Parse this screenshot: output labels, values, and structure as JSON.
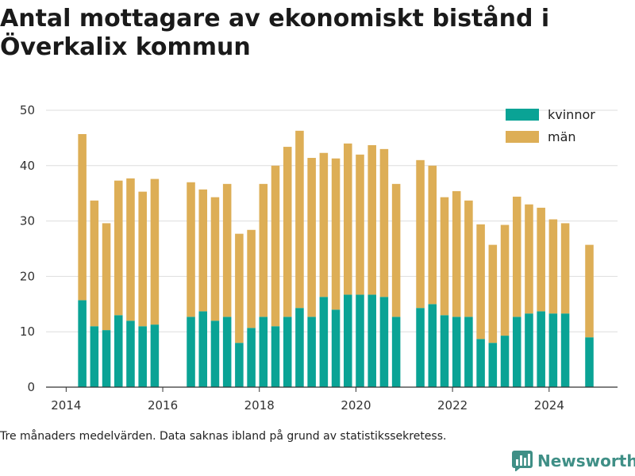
{
  "title": "Antal mottagare av ekonomiskt bistånd i Överkalix kommun",
  "footnote": "Tre månaders medelvärden. Data saknas ibland på grund av statistikssekretess.",
  "brand": {
    "name": "Newsworthy",
    "icon": "bar-chart-logo-icon"
  },
  "colors": {
    "kvinnor": "#0aa395",
    "man": "#ddae56",
    "grid": "#dddddd",
    "axis": "#333333"
  },
  "chart_data": {
    "type": "bar",
    "stacked": true,
    "xaxis": {
      "type": "date",
      "range": [
        "2013-08-01",
        "2025-06-01"
      ],
      "ticks": [
        "2014",
        "2016",
        "2018",
        "2020",
        "2022",
        "2024"
      ]
    },
    "yaxis": {
      "range": [
        0,
        50
      ],
      "ticks": [
        0,
        10,
        20,
        30,
        40,
        50
      ]
    },
    "grid": "horizontal",
    "legend": "top-right",
    "x": [
      "2014-05",
      "2014-08",
      "2014-11",
      "2015-02",
      "2015-05",
      "2015-08",
      "2015-11",
      "2016-08",
      "2016-11",
      "2017-02",
      "2017-05",
      "2017-08",
      "2017-11",
      "2018-02",
      "2018-05",
      "2018-08",
      "2018-11",
      "2019-02",
      "2019-05",
      "2019-08",
      "2019-11",
      "2020-02",
      "2020-05",
      "2020-08",
      "2020-11",
      "2021-05",
      "2021-08",
      "2021-11",
      "2022-02",
      "2022-05",
      "2022-08",
      "2022-11",
      "2023-02",
      "2023-05",
      "2023-08",
      "2023-11",
      "2024-02",
      "2024-05",
      "2024-11"
    ],
    "series": [
      {
        "name": "kvinnor",
        "values": [
          15.7,
          11,
          10.3,
          13,
          12,
          11,
          11.3,
          12.7,
          13.7,
          12,
          12.7,
          8,
          10.7,
          12.7,
          11,
          12.7,
          14.3,
          12.7,
          16.3,
          14,
          16.7,
          16.7,
          16.7,
          16.3,
          12.7,
          14.3,
          15,
          13,
          12.7,
          12.7,
          8.7,
          8,
          9.3,
          12.7,
          13.3,
          13.7,
          13.3,
          13.3,
          9
        ]
      },
      {
        "name": "män",
        "values": [
          30,
          22.7,
          19.3,
          24.3,
          25.7,
          24.3,
          26.3,
          24.3,
          22,
          22.3,
          24,
          19.7,
          17.7,
          24,
          29,
          30.7,
          32,
          28.7,
          26,
          27.3,
          27.3,
          25.3,
          27,
          26.7,
          24,
          26.7,
          25,
          21.3,
          22.7,
          21,
          20.7,
          17.7,
          20,
          21.7,
          19.7,
          18.7,
          17,
          16.3,
          16.7
        ]
      }
    ]
  }
}
